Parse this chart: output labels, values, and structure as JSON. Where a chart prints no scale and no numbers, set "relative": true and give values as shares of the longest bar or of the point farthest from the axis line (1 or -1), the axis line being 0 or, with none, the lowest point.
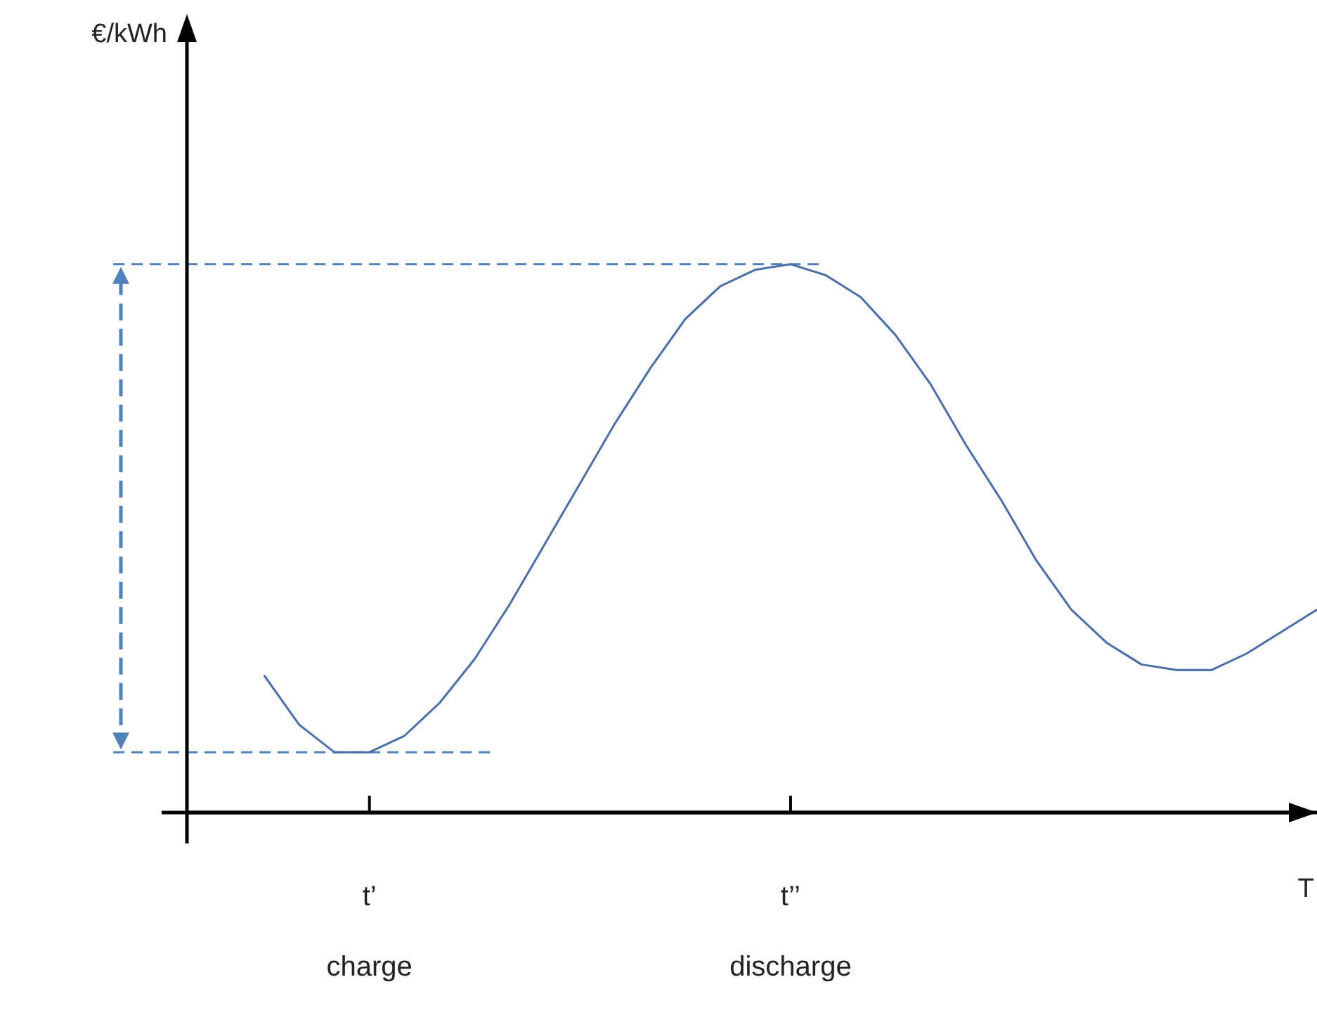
{
  "chart_data": {
    "type": "line",
    "relative": true,
    "xlabel": "T",
    "annotations": [
      "€/kWh"
    ],
    "categories": [
      null,
      null,
      null,
      "t’\ncharge",
      null,
      null,
      null,
      null,
      null,
      null,
      null,
      null,
      null,
      null,
      null,
      "t’’\ndischarge",
      null,
      null,
      null,
      null,
      null,
      null,
      null,
      null,
      null,
      null,
      null,
      null,
      null,
      null,
      null
    ],
    "color": "#4a6ea8",
    "values": [
      0.25,
      0.16,
      0.11,
      0.11,
      0.14,
      0.2,
      0.28,
      0.38,
      0.49,
      0.6,
      0.71,
      0.81,
      0.9,
      0.96,
      0.99,
      1,
      0.98,
      0.94,
      0.87,
      0.78,
      0.67,
      0.57,
      0.46,
      0.37,
      0.31,
      0.27,
      0.26,
      0.26,
      0.29,
      0.33,
      0.37
    ],
    "ref_lines": [
      {
        "axis": "y",
        "value": 1,
        "color": "#4f81bd",
        "line_style": "dashed"
      },
      {
        "axis": "y",
        "value": 0.11,
        "color": "#4f81bd",
        "line_style": "dashed"
      }
    ],
    "grid": false,
    "legend": false,
    "marker": "none",
    "line_style": "solid"
  }
}
